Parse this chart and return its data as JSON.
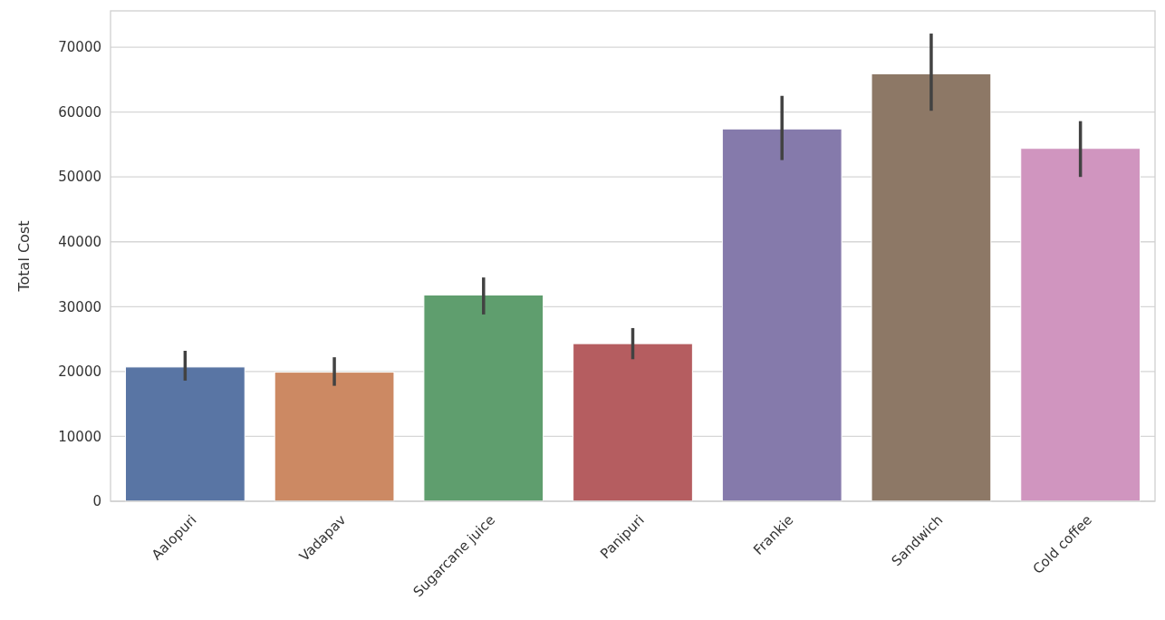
{
  "chart_data": {
    "type": "bar",
    "ylabel": "Total Cost",
    "categories": [
      "Aalopuri",
      "Vadapav",
      "Sugarcane juice",
      "Panipuri",
      "Frankie",
      "Sandwich",
      "Cold coffee"
    ],
    "values": [
      20700,
      19900,
      31800,
      24300,
      57400,
      65900,
      54400
    ],
    "colors": [
      "#5975a4",
      "#cc8963",
      "#5f9e6e",
      "#b55d60",
      "#857aab",
      "#8d7866",
      "#d095bf"
    ],
    "errors": [
      [
        18600,
        23200
      ],
      [
        17800,
        22200
      ],
      [
        28800,
        34500
      ],
      [
        21900,
        26700
      ],
      [
        52600,
        62500
      ],
      [
        60200,
        72100
      ],
      [
        50000,
        58600
      ]
    ],
    "ylim": [
      0,
      75600
    ],
    "yticks": [
      0,
      10000,
      20000,
      30000,
      40000,
      50000,
      60000,
      70000
    ],
    "grid": "y"
  }
}
